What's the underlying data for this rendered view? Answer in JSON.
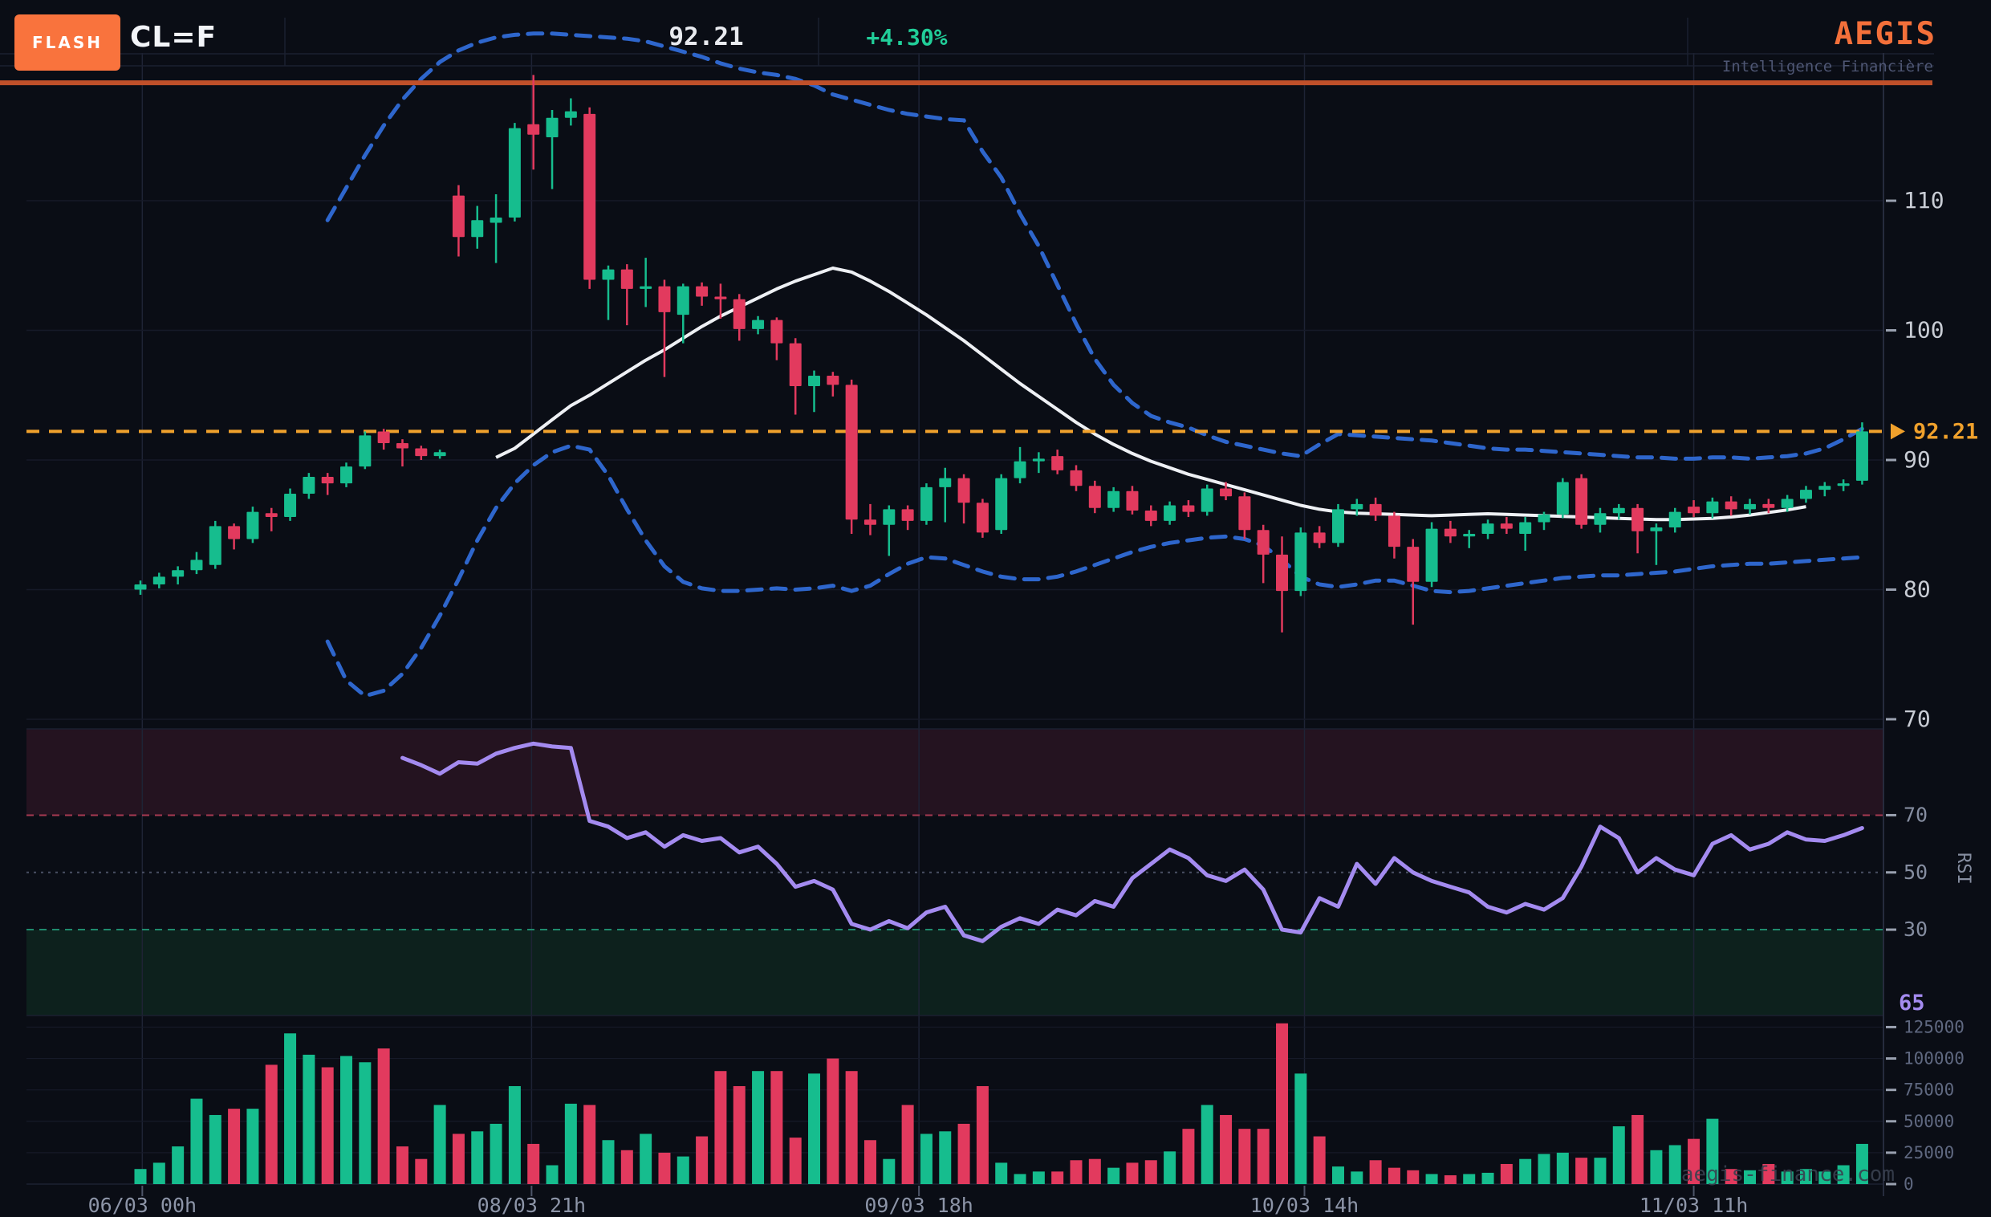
{
  "header": {
    "flash_label": "FLASH",
    "symbol": "CL=F",
    "last_price": "92.21",
    "change_percent": "+4.30%",
    "brand": "AEGIS",
    "brand_tagline": "Intelligence Financière"
  },
  "watermark": "aegis-finance.com",
  "colors": {
    "accent_orange": "#f9733d",
    "brand_orange": "#f4703a",
    "solid_line_orange": "#c0502a",
    "price_line_orange": "#f0a12c",
    "candle_green": "#16bd8e",
    "candle_red": "#e23a5e",
    "band_blue": "#2e66cc",
    "sma_white": "#eef0f4",
    "rsi_purple": "#a48bf0",
    "change_green": "#21ce99",
    "overbought_fill": "#241320",
    "oversold_fill": "#0d211d",
    "overbought_line": "#a83a52",
    "oversold_line": "#1f8a6d",
    "mid_line": "#4a5064"
  },
  "chart_data": {
    "type": "candlestick",
    "title": "CL=F",
    "price_axis": {
      "ticks": [
        110,
        100,
        90,
        80,
        70
      ],
      "ylim_note": "price pane ~70-123"
    },
    "price_line": {
      "value": 92.21,
      "label": "92.21"
    },
    "alert_line_value": 119.1,
    "x_ticks": [
      {
        "label": "06/03 00h",
        "index": 0.1
      },
      {
        "label": "08/03 21h",
        "index": 20.9
      },
      {
        "label": "09/03 18h",
        "index": 41.6
      },
      {
        "label": "10/03 14h",
        "index": 62.2
      },
      {
        "label": "11/03 11h",
        "index": 83.0
      }
    ],
    "volume_axis": {
      "ticks": [
        125000,
        100000,
        75000,
        50000,
        25000,
        0
      ]
    },
    "rsi": {
      "label": "RSI",
      "levels": [
        70,
        50,
        30
      ],
      "current_label": "65",
      "start_index": 14,
      "values": [
        90,
        87.5,
        84.5,
        88.5,
        88,
        91.5,
        93.5,
        95,
        94,
        93.5,
        68,
        66,
        62,
        64,
        59,
        63,
        61,
        62,
        57,
        59,
        53,
        45,
        47,
        44,
        32,
        30,
        33,
        30.5,
        36,
        38,
        28,
        26,
        31,
        34,
        32,
        37,
        35,
        40,
        38,
        48,
        53,
        58,
        55,
        49,
        47,
        51,
        44,
        30,
        29,
        41,
        38,
        53,
        46,
        55,
        50,
        47,
        45,
        43,
        38,
        36,
        39,
        37,
        41,
        52,
        66,
        62,
        50,
        55,
        51,
        49,
        60,
        63,
        58,
        60,
        64,
        61.5,
        61,
        63,
        65.5
      ]
    },
    "sma": {
      "period": 20,
      "start_index": 19,
      "values": [
        90.2,
        90.9,
        92.0,
        93.1,
        94.2,
        95.0,
        95.9,
        96.8,
        97.7,
        98.5,
        99.4,
        100.3,
        101.1,
        101.8,
        102.5,
        103.2,
        103.8,
        104.3,
        104.8,
        104.5,
        103.8,
        103.0,
        102.1,
        101.2,
        100.2,
        99.2,
        98.1,
        97.0,
        95.9,
        94.9,
        93.9,
        92.9,
        92.0,
        91.2,
        90.5,
        89.9,
        89.4,
        88.9,
        88.5,
        88.1,
        87.7,
        87.3,
        86.9,
        86.5,
        86.2,
        86.0,
        85.9,
        85.85,
        85.8,
        85.75,
        85.7,
        85.75,
        85.8,
        85.85,
        85.8,
        85.75,
        85.7,
        85.65,
        85.6,
        85.55,
        85.5,
        85.45,
        85.4,
        85.4,
        85.45,
        85.5,
        85.6,
        85.75,
        85.95,
        86.15,
        86.4
      ]
    },
    "bb_upper": {
      "start_index": 10,
      "values": [
        108.5,
        111,
        113.5,
        115.8,
        117.8,
        119.4,
        120.7,
        121.6,
        122.2,
        122.6,
        122.8,
        122.9,
        122.9,
        122.8,
        122.7,
        122.6,
        122.5,
        122.3,
        121.9,
        121.5,
        121.1,
        120.6,
        120.2,
        119.9,
        119.7,
        119.4,
        118.9,
        118.2,
        117.8,
        117.4,
        117.0,
        116.7,
        116.5,
        116.3,
        116.2,
        113.8,
        111.8,
        109.0,
        106.5,
        103.5,
        100.5,
        97.8,
        95.8,
        94.4,
        93.4,
        92.9,
        92.5,
        91.9,
        91.4,
        91.1,
        90.8,
        90.5,
        90.3,
        91.2,
        92.0,
        91.9,
        91.8,
        91.7,
        91.6,
        91.5,
        91.3,
        91.1,
        90.9,
        90.8,
        90.8,
        90.7,
        90.6,
        90.5,
        90.4,
        90.3,
        90.2,
        90.2,
        90.1,
        90.1,
        90.2,
        90.2,
        90.1,
        90.2,
        90.3,
        90.5,
        90.9,
        91.6,
        92.4
      ]
    },
    "bb_lower": {
      "start_index": 10,
      "values": [
        76,
        73,
        71.8,
        72.2,
        73.5,
        75.5,
        78,
        80.8,
        83.8,
        86.3,
        88.2,
        89.6,
        90.6,
        91.1,
        90.8,
        88.8,
        86.2,
        83.8,
        81.8,
        80.6,
        80.1,
        79.9,
        79.9,
        80.0,
        80.1,
        80.0,
        80.1,
        80.3,
        79.9,
        80.3,
        81.2,
        82.0,
        82.5,
        82.4,
        81.9,
        81.4,
        81.0,
        80.8,
        80.8,
        81.0,
        81.4,
        81.9,
        82.4,
        82.9,
        83.3,
        83.6,
        83.8,
        84.0,
        84.1,
        83.9,
        83.4,
        82.3,
        81.0,
        80.4,
        80.2,
        80.4,
        80.7,
        80.7,
        80.3,
        79.9,
        79.8,
        79.9,
        80.1,
        80.3,
        80.5,
        80.7,
        80.9,
        81.0,
        81.1,
        81.1,
        81.2,
        81.3,
        81.4,
        81.6,
        81.8,
        81.9,
        82.0,
        82.0,
        82.1,
        82.2,
        82.3,
        82.4,
        82.5
      ]
    },
    "candles": [
      [
        80.0,
        80.7,
        79.6,
        80.4,
        12
      ],
      [
        80.4,
        81.3,
        80.1,
        81.0,
        17
      ],
      [
        81.0,
        81.8,
        80.4,
        81.5,
        30
      ],
      [
        81.5,
        82.9,
        81.2,
        82.3,
        68
      ],
      [
        81.9,
        85.3,
        81.6,
        84.9,
        55
      ],
      [
        84.9,
        85.1,
        83.1,
        83.9,
        60
      ],
      [
        83.9,
        86.4,
        83.6,
        86.0,
        60
      ],
      [
        85.9,
        86.3,
        84.5,
        85.6,
        95
      ],
      [
        85.6,
        87.8,
        85.3,
        87.4,
        120
      ],
      [
        87.4,
        89.0,
        87.0,
        88.7,
        103
      ],
      [
        88.7,
        89.0,
        87.3,
        88.2,
        93
      ],
      [
        88.2,
        89.8,
        87.9,
        89.5,
        102
      ],
      [
        89.5,
        92.2,
        89.3,
        91.9,
        97
      ],
      [
        92.2,
        92.4,
        90.8,
        91.3,
        108
      ],
      [
        91.3,
        91.6,
        89.5,
        90.9,
        30
      ],
      [
        90.9,
        91.1,
        90.0,
        90.3,
        20
      ],
      [
        90.3,
        90.8,
        90.1,
        90.6,
        63
      ],
      [
        110.4,
        111.2,
        105.7,
        107.2,
        40
      ],
      [
        107.2,
        109.6,
        106.3,
        108.5,
        42
      ],
      [
        108.3,
        110.5,
        105.2,
        108.7,
        48
      ],
      [
        108.7,
        116.0,
        108.4,
        115.6,
        78
      ],
      [
        115.9,
        119.7,
        112.4,
        115.1,
        32
      ],
      [
        114.9,
        117.0,
        110.9,
        116.4,
        15
      ],
      [
        116.4,
        117.9,
        115.8,
        116.9,
        64
      ],
      [
        116.7,
        117.2,
        103.2,
        103.9,
        63
      ],
      [
        103.9,
        105.0,
        100.8,
        104.7,
        35
      ],
      [
        104.7,
        105.1,
        100.4,
        103.2,
        27
      ],
      [
        103.2,
        105.6,
        101.8,
        103.4,
        40
      ],
      [
        103.4,
        103.9,
        96.4,
        101.4,
        25
      ],
      [
        101.2,
        103.6,
        99.0,
        103.4,
        22
      ],
      [
        103.4,
        103.7,
        101.9,
        102.6,
        38
      ],
      [
        102.6,
        103.6,
        100.9,
        102.4,
        90
      ],
      [
        102.4,
        102.8,
        99.2,
        100.1,
        78
      ],
      [
        100.1,
        101.1,
        99.7,
        100.8,
        90
      ],
      [
        100.8,
        101.0,
        97.7,
        99.0,
        90
      ],
      [
        99.0,
        99.4,
        93.5,
        95.7,
        37
      ],
      [
        95.7,
        96.9,
        93.7,
        96.5,
        88
      ],
      [
        96.5,
        96.8,
        94.9,
        95.8,
        100
      ],
      [
        95.8,
        96.2,
        84.3,
        85.4,
        90
      ],
      [
        85.4,
        86.6,
        84.2,
        85.0,
        35
      ],
      [
        85.0,
        86.5,
        82.6,
        86.2,
        20
      ],
      [
        86.2,
        86.5,
        84.6,
        85.3,
        63
      ],
      [
        85.3,
        88.2,
        85.0,
        87.9,
        40
      ],
      [
        87.9,
        89.4,
        85.2,
        88.6,
        42
      ],
      [
        88.6,
        88.9,
        85.1,
        86.7,
        48
      ],
      [
        86.7,
        87.0,
        84.0,
        84.4,
        78
      ],
      [
        84.6,
        88.9,
        84.3,
        88.6,
        17
      ],
      [
        88.6,
        91.0,
        88.2,
        89.9,
        8
      ],
      [
        89.9,
        90.6,
        89.0,
        90.1,
        10
      ],
      [
        90.3,
        90.8,
        88.9,
        89.2,
        10
      ],
      [
        89.2,
        89.6,
        87.6,
        88.0,
        19
      ],
      [
        88.0,
        88.4,
        85.9,
        86.3,
        20
      ],
      [
        86.3,
        87.9,
        86.0,
        87.6,
        13
      ],
      [
        87.6,
        88.0,
        85.8,
        86.1,
        17
      ],
      [
        86.1,
        86.5,
        84.9,
        85.3,
        19
      ],
      [
        85.3,
        86.8,
        85.0,
        86.5,
        26
      ],
      [
        86.5,
        86.9,
        85.6,
        86.0,
        44
      ],
      [
        86.0,
        88.1,
        85.7,
        87.8,
        63
      ],
      [
        87.8,
        88.3,
        86.9,
        87.2,
        55
      ],
      [
        87.2,
        87.5,
        83.9,
        84.6,
        44
      ],
      [
        84.6,
        85.0,
        80.5,
        82.7,
        44
      ],
      [
        82.7,
        84.1,
        76.7,
        79.9,
        128
      ],
      [
        79.9,
        84.8,
        79.5,
        84.4,
        88
      ],
      [
        84.4,
        84.9,
        83.2,
        83.6,
        38
      ],
      [
        83.6,
        86.6,
        83.3,
        86.2,
        14
      ],
      [
        86.2,
        87.0,
        85.7,
        86.6,
        10
      ],
      [
        86.6,
        87.1,
        85.3,
        85.7,
        19
      ],
      [
        85.7,
        86.0,
        82.4,
        83.3,
        13
      ],
      [
        83.3,
        83.9,
        77.3,
        80.6,
        11
      ],
      [
        80.6,
        85.2,
        80.2,
        84.7,
        8
      ],
      [
        84.7,
        85.3,
        83.6,
        84.1,
        7
      ],
      [
        84.1,
        84.6,
        83.2,
        84.3,
        8
      ],
      [
        84.3,
        85.4,
        83.9,
        85.1,
        9
      ],
      [
        85.1,
        85.6,
        84.3,
        84.7,
        16
      ],
      [
        84.3,
        85.6,
        83.0,
        85.2,
        20
      ],
      [
        85.2,
        86.0,
        84.6,
        85.8,
        24
      ],
      [
        85.8,
        88.6,
        85.5,
        88.3,
        25
      ],
      [
        88.6,
        88.9,
        84.7,
        85.0,
        21
      ],
      [
        85.0,
        86.3,
        84.4,
        85.9,
        21
      ],
      [
        85.9,
        86.6,
        85.4,
        86.3,
        46
      ],
      [
        86.3,
        86.6,
        82.8,
        84.5,
        55
      ],
      [
        84.5,
        85.1,
        81.9,
        84.8,
        27
      ],
      [
        84.8,
        86.3,
        84.4,
        86.0,
        31
      ],
      [
        86.4,
        86.9,
        85.6,
        85.9,
        36
      ],
      [
        85.9,
        87.1,
        85.5,
        86.8,
        52
      ],
      [
        86.8,
        87.2,
        85.7,
        86.2,
        12
      ],
      [
        86.2,
        87.0,
        85.8,
        86.6,
        11
      ],
      [
        86.6,
        87.0,
        85.9,
        86.3,
        16
      ],
      [
        86.3,
        87.3,
        86.0,
        87.0,
        10
      ],
      [
        87.0,
        88.0,
        86.7,
        87.7,
        12
      ],
      [
        87.7,
        88.3,
        87.2,
        88.0,
        10
      ],
      [
        88.0,
        88.5,
        87.6,
        88.2,
        15
      ],
      [
        88.4,
        92.9,
        88.1,
        92.21,
        32
      ]
    ]
  }
}
